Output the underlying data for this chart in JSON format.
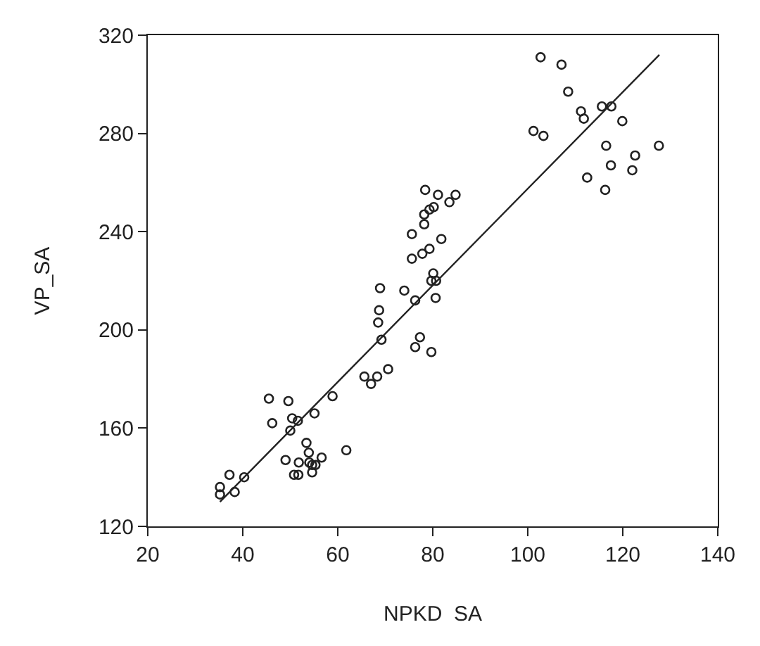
{
  "chart_data": {
    "type": "scatter",
    "xlabel": "NPKD  SA",
    "ylabel": "VP_SA",
    "xlim": [
      20,
      140
    ],
    "xticks": [
      20,
      40,
      60,
      80,
      100,
      120,
      140
    ],
    "ylim": [
      120,
      320
    ],
    "yticks": [
      120,
      160,
      200,
      240,
      280,
      320
    ],
    "grid": false,
    "series": [
      {
        "color": "#222222",
        "marker": "circle",
        "x": [
          35.2,
          35.2,
          37.2,
          38.3,
          40.3,
          45.5,
          46.2,
          49,
          49.6,
          50,
          50.4,
          51.6,
          50.8,
          51.7,
          51.8,
          53.4,
          53.9,
          54,
          54.6,
          54.6,
          55.1,
          55.3,
          56.6,
          58.9,
          61.8,
          65.6,
          67,
          68.3,
          70.6,
          68.5,
          68.7,
          68.9,
          69.2,
          74,
          76.3,
          75.6,
          75.6,
          76.3,
          77.3,
          79.7,
          77.8,
          79.3,
          81.8,
          78.2,
          78.2,
          79.3,
          80.2,
          78.4,
          81.1,
          83.5,
          84.8,
          80.1,
          79.7,
          80.7,
          80.6,
          101.2,
          103.3,
          102.7,
          107.1,
          108.5,
          111.2,
          111.8,
          115.6,
          117.6,
          119.9,
          116.5,
          117.5,
          112.5,
          116.3,
          122,
          122.6,
          127.6
        ],
        "values": [
          136,
          133,
          141,
          134,
          140,
          172,
          162,
          147,
          171,
          159,
          164,
          163,
          141,
          141,
          146,
          154,
          150,
          146,
          142,
          145,
          166,
          145,
          148,
          173,
          151,
          181,
          178,
          181,
          184,
          203,
          208,
          217,
          196,
          216,
          212,
          229,
          239,
          193,
          197,
          191,
          231,
          233,
          237,
          243,
          247,
          249,
          250,
          257,
          255,
          252,
          255,
          223,
          220,
          220,
          213,
          281,
          279,
          311,
          308,
          297,
          289,
          286,
          291,
          291,
          285,
          275,
          267,
          262,
          257,
          265,
          271,
          275
        ]
      },
      {
        "type": "line",
        "marker": "none",
        "color": "#222222",
        "x": [
          35.2,
          127.7
        ],
        "values": [
          130,
          312
        ]
      }
    ]
  }
}
